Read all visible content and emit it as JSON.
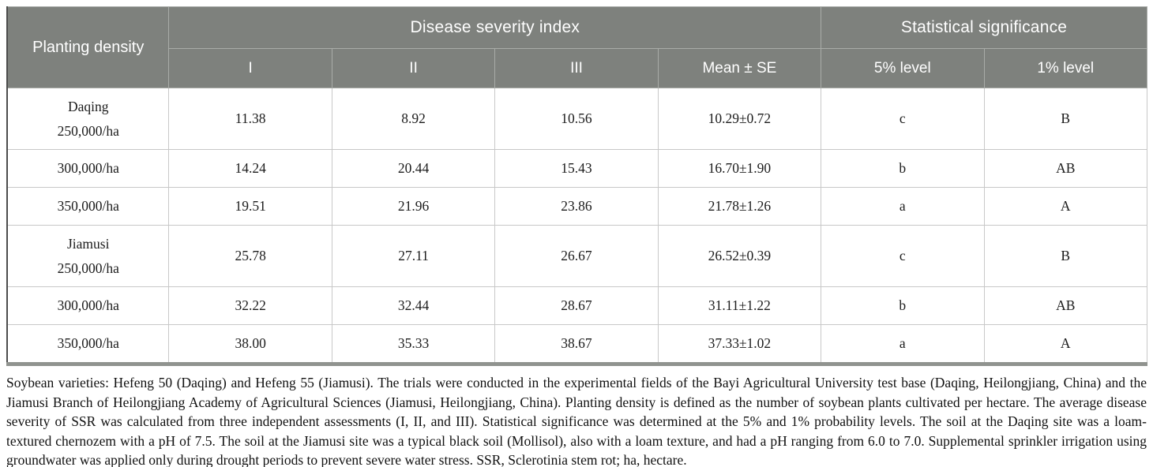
{
  "table": {
    "header": {
      "planting_density": "Planting density",
      "disease_group": "Disease severity index",
      "stat_group": "Statistical significance",
      "subheaders": [
        "I",
        "II",
        "III",
        "Mean ± SE",
        "5% level",
        "1% level"
      ]
    },
    "rows": [
      {
        "site": "Daqing",
        "density": "250,000/ha",
        "i": "11.38",
        "ii": "8.92",
        "iii": "10.56",
        "mean_se": "10.29±0.72",
        "level5": "c",
        "level1": "B"
      },
      {
        "site": "",
        "density": "300,000/ha",
        "i": "14.24",
        "ii": "20.44",
        "iii": "15.43",
        "mean_se": "16.70±1.90",
        "level5": "b",
        "level1": "AB"
      },
      {
        "site": "",
        "density": "350,000/ha",
        "i": "19.51",
        "ii": "21.96",
        "iii": "23.86",
        "mean_se": "21.78±1.26",
        "level5": "a",
        "level1": "A"
      },
      {
        "site": "Jiamusi",
        "density": "250,000/ha",
        "i": "25.78",
        "ii": "27.11",
        "iii": "26.67",
        "mean_se": "26.52±0.39",
        "level5": "c",
        "level1": "B"
      },
      {
        "site": "",
        "density": "300,000/ha",
        "i": "32.22",
        "ii": "32.44",
        "iii": "28.67",
        "mean_se": "31.11±1.22",
        "level5": "b",
        "level1": "AB"
      },
      {
        "site": "",
        "density": "350,000/ha",
        "i": "38.00",
        "ii": "35.33",
        "iii": "38.67",
        "mean_se": "37.33±1.02",
        "level5": "a",
        "level1": "A"
      }
    ],
    "footnote": "Soybean varieties: Hefeng 50 (Daqing) and Hefeng 55 (Jiamusi). The trials were conducted in the experimental fields of the Bayi Agricultural University test base (Daqing, Heilongjiang, China) and the Jiamusi Branch of Heilongjiang Academy of Agricultural Sciences (Jiamusi, Heilongjiang, China). Planting density is defined as the number of soybean plants cultivated per hectare. The average disease severity of SSR was calculated from three independent assessments (I, II, and III). Statistical significance was determined at the 5% and 1% probability levels. The soil at the Daqing site was a loam-textured chernozem with a pH of 7.5. The soil at the Jiamusi site was a typical black soil (Mollisol), also with a loam texture, and had a pH ranging from 6.0 to 7.0. Supplemental sprinkler irrigation using groundwater was applied only during drought periods to prevent severe water stress. SSR, Sclerotinia stem rot; ha, hectare."
  },
  "colors": {
    "header_bg": "#7e817d",
    "header_text": "#ffffff",
    "cell_border": "#c8c8c8",
    "table_left_border": "#4c4c4c",
    "table_bottom_border": "#90938f",
    "body_text": "#1c1c1c"
  }
}
